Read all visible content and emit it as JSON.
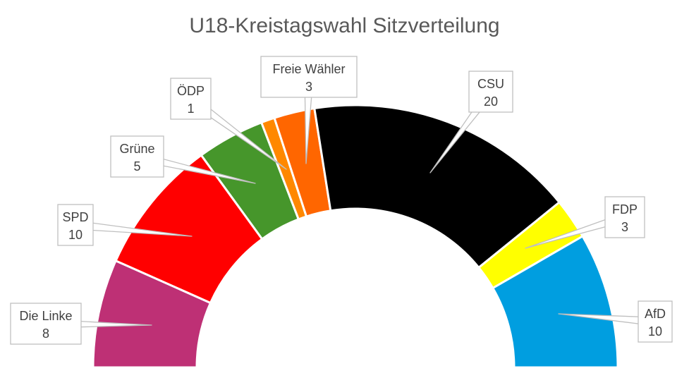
{
  "chart_data": {
    "type": "pie",
    "variant": "half-donut",
    "title": "U18-Kreistagswahl Sitzverteilung",
    "categories": [
      "Die Linke",
      "SPD",
      "Grüne",
      "ÖDP",
      "Freie Wähler",
      "CSU",
      "FDP",
      "AfD"
    ],
    "values": [
      8,
      10,
      5,
      1,
      3,
      20,
      3,
      10
    ],
    "colors": [
      "#BE3075",
      "#FF0000",
      "#46962B",
      "#FF8800",
      "#FF6600",
      "#000000",
      "#FFFF00",
      "#009EE0"
    ],
    "data_labels": [
      {
        "name": "Die Linke",
        "value": "8"
      },
      {
        "name": "SPD",
        "value": "10"
      },
      {
        "name": "Grüne",
        "value": "5"
      },
      {
        "name": "ÖDP",
        "value": "1"
      },
      {
        "name": "Freie Wähler",
        "value": "3"
      },
      {
        "name": "CSU",
        "value": "20"
      },
      {
        "name": "FDP",
        "value": "3"
      },
      {
        "name": "AfD",
        "value": "10"
      }
    ],
    "legend": "none"
  }
}
